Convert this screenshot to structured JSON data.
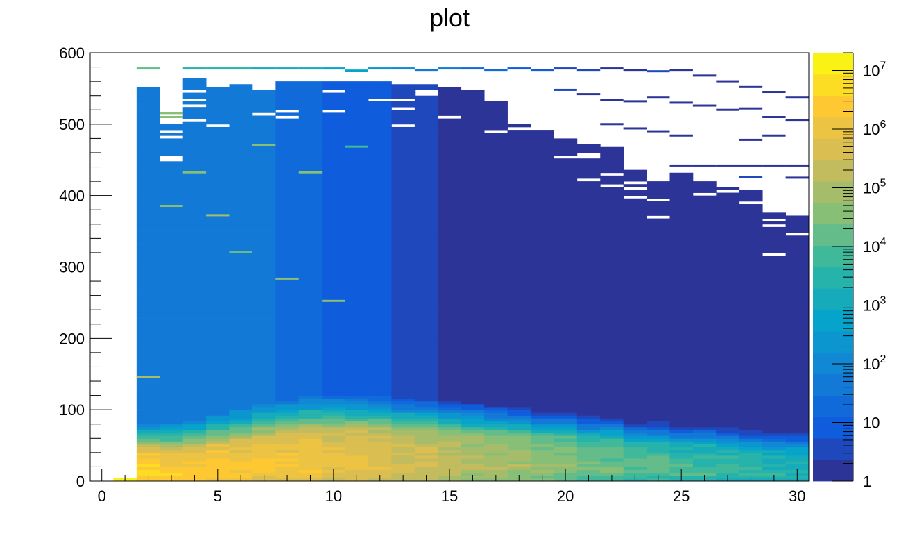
{
  "chart_data": {
    "type": "heatmap",
    "title": "plot",
    "xlabel": "",
    "ylabel": "",
    "xlim": [
      -0.5,
      30.5
    ],
    "ylim": [
      0,
      600
    ],
    "x_bin_width": 1,
    "y_bin_width": 4,
    "x_ticks": [
      0,
      5,
      10,
      15,
      20,
      25,
      30
    ],
    "x_tick_labels": [
      "0",
      "5",
      "10",
      "15",
      "20",
      "25",
      "30"
    ],
    "y_ticks": [
      0,
      100,
      200,
      300,
      400,
      500,
      600
    ],
    "y_tick_labels": [
      "0",
      "100",
      "200",
      "300",
      "400",
      "500",
      "600"
    ],
    "z_scale": "log",
    "z_range": [
      1,
      20000000
    ],
    "palette": "kBird",
    "colorbar": {
      "ticks": [
        1,
        10,
        100,
        1000,
        10000,
        100000,
        1000000,
        10000000
      ],
      "labels": [
        {
          "base": "1",
          "exp": ""
        },
        {
          "base": "10",
          "exp": ""
        },
        {
          "base": "10",
          "exp": "2"
        },
        {
          "base": "10",
          "exp": "3"
        },
        {
          "base": "10",
          "exp": "4"
        },
        {
          "base": "10",
          "exp": "5"
        },
        {
          "base": "10",
          "exp": "6"
        },
        {
          "base": "10",
          "exp": "7"
        }
      ]
    },
    "note": "approximate log10(counts) per bin; columns start at x = 1 (x = 1 only in the first y bins)",
    "columns": [
      {
        "x": 1,
        "top": 4,
        "hump_y": 0,
        "hump_h": 30,
        "peak": 7.1,
        "decay": 0.3,
        "min": 6.8
      },
      {
        "x": 2,
        "top": 552,
        "hump_y": 5,
        "hump_h": 35,
        "peak": 6.7,
        "decay": 0.012,
        "min": 1.5
      },
      {
        "x": 3,
        "top": 500,
        "hump_y": 5,
        "hump_h": 35,
        "peak": 6.5,
        "decay": 0.011,
        "min": 1.8
      },
      {
        "x": 4,
        "top": 563,
        "hump_y": 6,
        "hump_h": 38,
        "peak": 6.4,
        "decay": 0.0105,
        "min": 1.8
      },
      {
        "x": 5,
        "top": 550,
        "hump_y": 8,
        "hump_h": 42,
        "peak": 6.4,
        "decay": 0.01,
        "min": 1.8
      },
      {
        "x": 6,
        "top": 555,
        "hump_y": 10,
        "hump_h": 45,
        "peak": 6.3,
        "decay": 0.0095,
        "min": 1.6
      },
      {
        "x": 7,
        "top": 548,
        "hump_y": 12,
        "hump_h": 48,
        "peak": 6.3,
        "decay": 0.009,
        "min": 1.5
      },
      {
        "x": 8,
        "top": 560,
        "hump_y": 14,
        "hump_h": 50,
        "peak": 6.2,
        "decay": 0.009,
        "min": 1.4
      },
      {
        "x": 9,
        "top": 560,
        "hump_y": 16,
        "hump_h": 52,
        "peak": 6.2,
        "decay": 0.0092,
        "min": 1.2
      },
      {
        "x": 10,
        "top": 560,
        "hump_y": 18,
        "hump_h": 54,
        "peak": 6.0,
        "decay": 0.0095,
        "min": 1.0
      },
      {
        "x": 11,
        "top": 560,
        "hump_y": 18,
        "hump_h": 54,
        "peak": 5.9,
        "decay": 0.0098,
        "min": 0.9
      },
      {
        "x": 12,
        "top": 558,
        "hump_y": 18,
        "hump_h": 54,
        "peak": 5.8,
        "decay": 0.01,
        "min": 0.8
      },
      {
        "x": 13,
        "top": 555,
        "hump_y": 18,
        "hump_h": 52,
        "peak": 5.6,
        "decay": 0.0103,
        "min": 0.6
      },
      {
        "x": 14,
        "top": 555,
        "hump_y": 18,
        "hump_h": 52,
        "peak": 5.5,
        "decay": 0.0106,
        "min": 0.5
      },
      {
        "x": 15,
        "top": 550,
        "hump_y": 18,
        "hump_h": 50,
        "peak": 5.3,
        "decay": 0.011,
        "min": 0.3
      },
      {
        "x": 16,
        "top": 545,
        "hump_y": 18,
        "hump_h": 50,
        "peak": 5.1,
        "decay": 0.0113,
        "min": 0.2
      },
      {
        "x": 17,
        "top": 530,
        "hump_y": 18,
        "hump_h": 48,
        "peak": 5.0,
        "decay": 0.0116,
        "min": 0.1
      },
      {
        "x": 18,
        "top": 500,
        "hump_y": 18,
        "hump_h": 48,
        "peak": 4.9,
        "decay": 0.012,
        "min": 0.0
      },
      {
        "x": 19,
        "top": 490,
        "hump_y": 16,
        "hump_h": 46,
        "peak": 4.7,
        "decay": 0.0123,
        "min": 0.0
      },
      {
        "x": 20,
        "top": 480,
        "hump_y": 16,
        "hump_h": 46,
        "peak": 4.6,
        "decay": 0.0125,
        "min": 0.0
      },
      {
        "x": 21,
        "top": 470,
        "hump_y": 14,
        "hump_h": 44,
        "peak": 4.4,
        "decay": 0.0125,
        "min": 0.0
      },
      {
        "x": 22,
        "top": 465,
        "hump_y": 14,
        "hump_h": 44,
        "peak": 4.3,
        "decay": 0.0125,
        "min": 0.0
      },
      {
        "x": 23,
        "top": 440,
        "hump_y": 12,
        "hump_h": 42,
        "peak": 4.1,
        "decay": 0.0125,
        "min": 0.0
      },
      {
        "x": 24,
        "top": 420,
        "hump_y": 12,
        "hump_h": 42,
        "peak": 4.0,
        "decay": 0.0125,
        "min": 0.0
      },
      {
        "x": 25,
        "top": 430,
        "hump_y": 10,
        "hump_h": 40,
        "peak": 3.9,
        "decay": 0.0125,
        "min": 0.0
      },
      {
        "x": 26,
        "top": 420,
        "hump_y": 10,
        "hump_h": 40,
        "peak": 3.8,
        "decay": 0.0125,
        "min": 0.0
      },
      {
        "x": 27,
        "top": 415,
        "hump_y": 10,
        "hump_h": 38,
        "peak": 3.7,
        "decay": 0.0125,
        "min": 0.0
      },
      {
        "x": 28,
        "top": 405,
        "hump_y": 8,
        "hump_h": 38,
        "peak": 3.6,
        "decay": 0.0125,
        "min": 0.0
      },
      {
        "x": 29,
        "top": 375,
        "hump_y": 8,
        "hump_h": 36,
        "peak": 3.5,
        "decay": 0.0125,
        "min": 0.0
      },
      {
        "x": 30,
        "top": 372,
        "hump_y": 8,
        "hump_h": 36,
        "peak": 3.4,
        "decay": 0.0125,
        "min": 0.0
      }
    ],
    "sparse_segments": [
      {
        "x": 2,
        "y": 578,
        "v": 4.3
      },
      {
        "x": 3,
        "y": 510,
        "v": 4.4
      },
      {
        "x": 4,
        "y": 578,
        "v": 3.4
      },
      {
        "x": 5,
        "y": 578,
        "v": 3.4
      },
      {
        "x": 6,
        "y": 578,
        "v": 3.4
      },
      {
        "x": 7,
        "y": 578,
        "v": 3.2
      },
      {
        "x": 8,
        "y": 578,
        "v": 3.0
      },
      {
        "x": 9,
        "y": 578,
        "v": 3.0
      },
      {
        "x": 10,
        "y": 578,
        "v": 2.8
      },
      {
        "x": 11,
        "y": 575,
        "v": 2.9
      },
      {
        "x": 12,
        "y": 578,
        "v": 2.2
      },
      {
        "x": 13,
        "y": 578,
        "v": 2.0
      },
      {
        "x": 14,
        "y": 576,
        "v": 1.8
      },
      {
        "x": 15,
        "y": 578,
        "v": 1.6
      },
      {
        "x": 16,
        "y": 578,
        "v": 1.4
      },
      {
        "x": 17,
        "y": 576,
        "v": 1.2
      },
      {
        "x": 18,
        "y": 578,
        "v": 1.0
      },
      {
        "x": 19,
        "y": 576,
        "v": 0.8
      },
      {
        "x": 20,
        "y": 578,
        "v": 0.6
      },
      {
        "x": 21,
        "y": 576,
        "v": 0.4
      },
      {
        "x": 22,
        "y": 578,
        "v": 0.3
      },
      {
        "x": 23,
        "y": 576,
        "v": 0.2
      },
      {
        "x": 24,
        "y": 574,
        "v": 0.5
      },
      {
        "x": 25,
        "y": 576,
        "v": 0.2
      },
      {
        "x": 26,
        "y": 568,
        "v": 0.1
      },
      {
        "x": 27,
        "y": 560,
        "v": 0.0
      },
      {
        "x": 28,
        "y": 552,
        "v": 0.0
      },
      {
        "x": 29,
        "y": 545,
        "v": 0.0
      },
      {
        "x": 30,
        "y": 538,
        "v": 0.0
      },
      {
        "x": 20,
        "y": 548,
        "v": 0.5
      },
      {
        "x": 21,
        "y": 542,
        "v": 0.3
      },
      {
        "x": 22,
        "y": 534,
        "v": 0.2
      },
      {
        "x": 23,
        "y": 532,
        "v": 0.1
      },
      {
        "x": 24,
        "y": 538,
        "v": 0.2
      },
      {
        "x": 25,
        "y": 530,
        "v": 0.0
      },
      {
        "x": 26,
        "y": 526,
        "v": 0.1
      },
      {
        "x": 27,
        "y": 520,
        "v": 0.0
      },
      {
        "x": 28,
        "y": 522,
        "v": 0.0
      },
      {
        "x": 29,
        "y": 510,
        "v": 0.0
      },
      {
        "x": 30,
        "y": 506,
        "v": 0.0
      },
      {
        "x": 22,
        "y": 500,
        "v": 0.0
      },
      {
        "x": 23,
        "y": 494,
        "v": 0.1
      },
      {
        "x": 24,
        "y": 490,
        "v": 0.0
      },
      {
        "x": 25,
        "y": 484,
        "v": 0.0
      },
      {
        "x": 28,
        "y": 478,
        "v": 0.1
      },
      {
        "x": 29,
        "y": 484,
        "v": 0.0
      },
      {
        "x": 25,
        "y": 442,
        "v": 0.0
      },
      {
        "x": 26,
        "y": 442,
        "v": 0.0
      },
      {
        "x": 27,
        "y": 442,
        "v": 0.0
      },
      {
        "x": 28,
        "y": 442,
        "v": 0.0
      },
      {
        "x": 29,
        "y": 442,
        "v": 0.0
      },
      {
        "x": 30,
        "y": 442,
        "v": 0.0
      },
      {
        "x": 30,
        "y": 425,
        "v": 0.0
      },
      {
        "x": 28,
        "y": 426,
        "v": 0.5
      }
    ],
    "high_streaks": [
      {
        "x": 3,
        "y": 385,
        "v": 4.6
      },
      {
        "x": 5,
        "y": 372,
        "v": 4.8
      },
      {
        "x": 7,
        "y": 470,
        "v": 4.4
      },
      {
        "x": 8,
        "y": 283,
        "v": 4.4
      },
      {
        "x": 9,
        "y": 432,
        "v": 4.5
      },
      {
        "x": 10,
        "y": 252,
        "v": 4.6
      },
      {
        "x": 4,
        "y": 432,
        "v": 4.4
      },
      {
        "x": 6,
        "y": 320,
        "v": 4.2
      },
      {
        "x": 11,
        "y": 468,
        "v": 4.0
      },
      {
        "x": 2,
        "y": 145,
        "v": 4.8
      },
      {
        "x": 3,
        "y": 515,
        "v": 4.6
      }
    ]
  }
}
